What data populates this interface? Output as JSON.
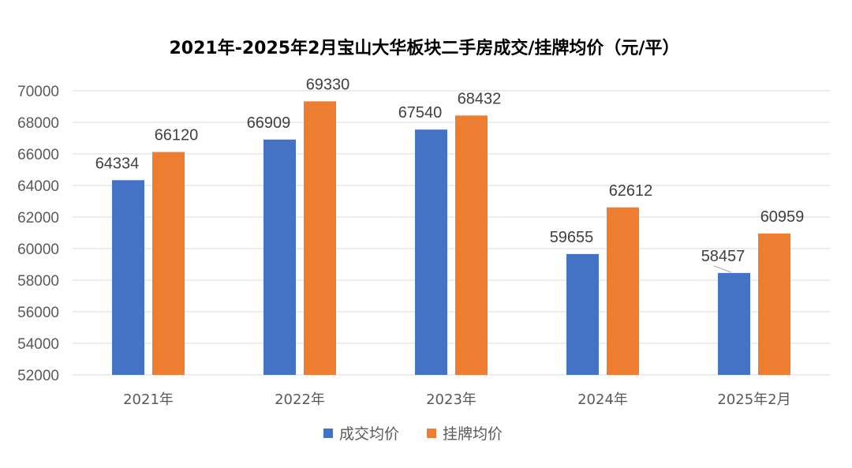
{
  "chart_data": {
    "type": "bar",
    "title": "2021年-2025年2月宝山大华板块二手房成交/挂牌均价（元/平）",
    "categories": [
      "2021年",
      "2022年",
      "2023年",
      "2024年",
      "2025年2月"
    ],
    "series": [
      {
        "name": "成交均价",
        "color": "#4472c4",
        "values": [
          64334,
          66909,
          67540,
          59655,
          58457
        ]
      },
      {
        "name": "挂牌均价",
        "color": "#ed7d31",
        "values": [
          66120,
          69330,
          68432,
          62612,
          60959
        ]
      }
    ],
    "ylim": [
      52000,
      70000
    ],
    "yticks": [
      52000,
      54000,
      56000,
      58000,
      60000,
      62000,
      64000,
      66000,
      68000,
      70000
    ],
    "grid": true,
    "legend_position": "bottom",
    "data_labels": true
  }
}
